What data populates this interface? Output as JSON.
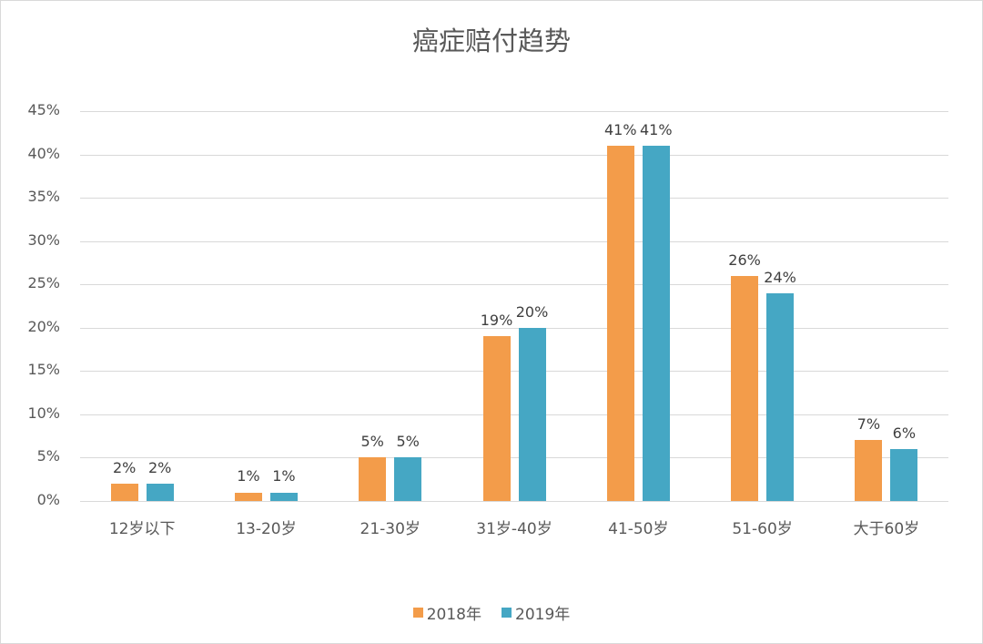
{
  "title": "癌症赔付趋势",
  "colors": {
    "s2018": "#F39C4A",
    "s2019": "#45A7C4"
  },
  "legend": [
    {
      "label": "2018年",
      "color": "#F39C4A"
    },
    {
      "label": "2019年",
      "color": "#45A7C4"
    }
  ],
  "y_ticks": [
    "0%",
    "5%",
    "10%",
    "15%",
    "20%",
    "25%",
    "30%",
    "35%",
    "40%",
    "45%"
  ],
  "categories": [
    "12岁以下",
    "13-20岁",
    "21-30岁",
    "31岁-40岁",
    "41-50岁",
    "51-60岁",
    "大于60岁"
  ],
  "labels_2018": [
    "2%",
    "1%",
    "5%",
    "19%",
    "41%",
    "26%",
    "7%"
  ],
  "labels_2019": [
    "2%",
    "1%",
    "5%",
    "20%",
    "41%",
    "24%",
    "6%"
  ],
  "chart_data": {
    "type": "bar",
    "title": "癌症赔付趋势",
    "categories": [
      "12岁以下",
      "13-20岁",
      "21-30岁",
      "31岁-40岁",
      "41-50岁",
      "51-60岁",
      "大于60岁"
    ],
    "series": [
      {
        "name": "2018年",
        "values": [
          2,
          1,
          5,
          19,
          41,
          26,
          7
        ],
        "color": "#F39C4A"
      },
      {
        "name": "2019年",
        "values": [
          2,
          1,
          5,
          20,
          41,
          24,
          6
        ],
        "color": "#45A7C4"
      }
    ],
    "xlabel": "",
    "ylabel": "",
    "ylim": [
      0,
      45
    ],
    "y_ticks": [
      0,
      5,
      10,
      15,
      20,
      25,
      30,
      35,
      40,
      45
    ],
    "y_format": "percent",
    "grid": true,
    "data_labels": true,
    "legend_position": "bottom"
  }
}
